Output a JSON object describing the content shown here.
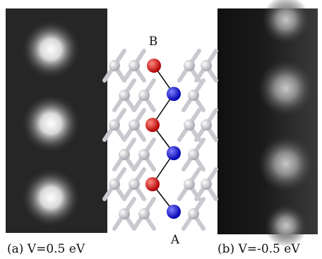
{
  "labels": {
    "top_atom": "B",
    "bottom_atom": "A"
  },
  "captions": {
    "left": "(a) V=0.5 eV",
    "right": "(b) V=-0.5 eV"
  }
}
